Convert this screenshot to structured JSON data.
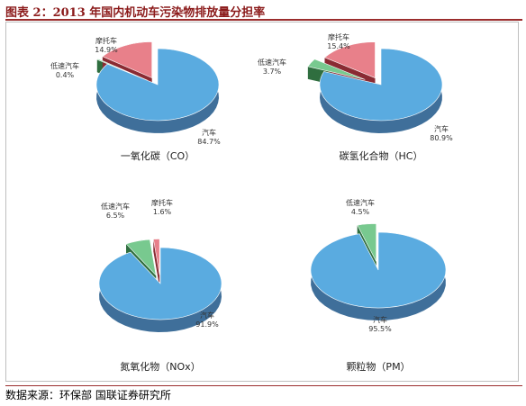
{
  "figure": {
    "title": "图表 2：2013 年国内机动车污染物排放量分担率",
    "source": "数据来源：环保部 国联证券研究所"
  },
  "colors": {
    "汽车": "#5aabe0",
    "低速汽车": "#78c98f",
    "摩托车": "#e8808a"
  },
  "chart_data": [
    {
      "type": "pie",
      "title": "一氧化碳（CO）",
      "categories": [
        "汽车",
        "低速汽车",
        "摩托车"
      ],
      "values": [
        84.7,
        0.4,
        14.9
      ],
      "labels": [
        "84.7%",
        "0.4%",
        "14.9%"
      ]
    },
    {
      "type": "pie",
      "title": "碳氢化合物（HC）",
      "categories": [
        "汽车",
        "低速汽车",
        "摩托车"
      ],
      "values": [
        80.9,
        3.7,
        15.4
      ],
      "labels": [
        "80.9%",
        "3.7%",
        "15.4%"
      ]
    },
    {
      "type": "pie",
      "title": "氮氧化物（NOx）",
      "categories": [
        "汽车",
        "低速汽车",
        "摩托车"
      ],
      "values": [
        91.9,
        6.5,
        1.6
      ],
      "labels": [
        "91.9%",
        "6.5%",
        "1.6%"
      ]
    },
    {
      "type": "pie",
      "title": "颗粒物（PM）",
      "categories": [
        "汽车",
        "低速汽车"
      ],
      "values": [
        95.5,
        4.5
      ],
      "labels": [
        "95.5%",
        "4.5%"
      ]
    }
  ]
}
